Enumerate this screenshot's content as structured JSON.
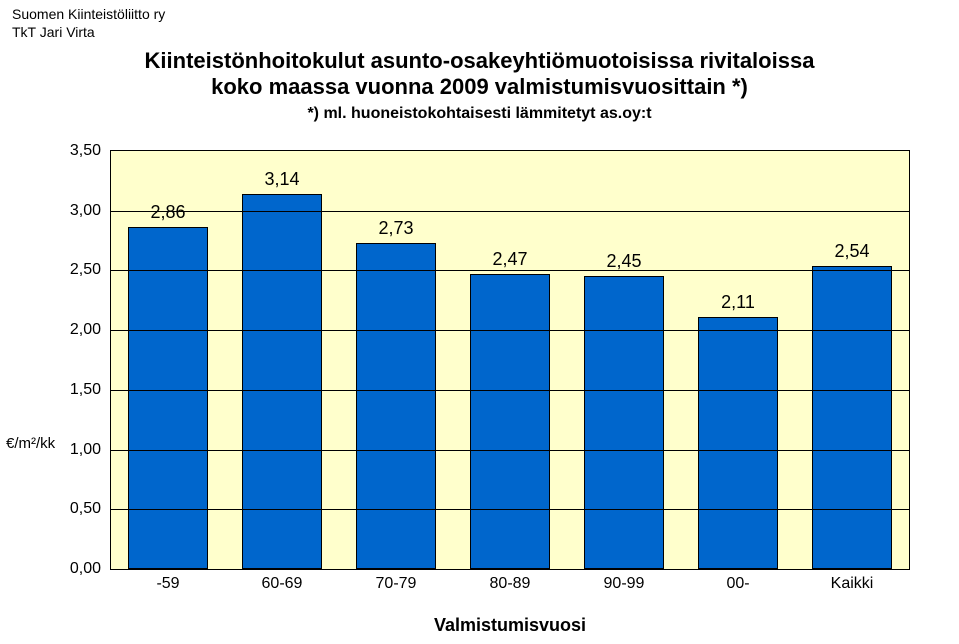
{
  "header": {
    "line1": "Suomen Kiinteistöliitto ry",
    "line2": "TkT Jari Virta"
  },
  "title": {
    "line1": "Kiinteistönhoitokulut asunto-osakeyhtiömuotoisissa rivitaloissa",
    "line2": "koko maassa vuonna 2009 valmistumisvuosittain *)",
    "subtitle": "*) ml. huoneistokohtaisesti lämmitetyt as.oy:t"
  },
  "yaxis": {
    "unit": "€/m²/kk",
    "title": "Valmistumisvuosi"
  },
  "chart": {
    "type": "bar",
    "ylim_min": 0.0,
    "ylim_max": 3.5,
    "ytick_step": 0.5,
    "yticks": [
      "0,00",
      "0,50",
      "1,00",
      "1,50",
      "2,00",
      "2,50",
      "3,00",
      "3,50"
    ],
    "categories": [
      "-59",
      "60-69",
      "70-79",
      "80-89",
      "90-99",
      "00-",
      "Kaikki"
    ],
    "values": [
      2.86,
      3.14,
      2.73,
      2.47,
      2.45,
      2.11,
      2.54
    ],
    "value_labels": [
      "2,86",
      "3,14",
      "2,73",
      "2,47",
      "2,45",
      "2,11",
      "2,54"
    ],
    "bar_color": "#0066cc",
    "bar_border_color": "#000000",
    "plot_bg_color": "#ffffcc",
    "grid_color": "#000000",
    "axis_color": "#000000",
    "label_fontsize": 18,
    "tick_fontsize": 16,
    "title_fontsize": 22,
    "bar_width_ratio": 0.7
  }
}
